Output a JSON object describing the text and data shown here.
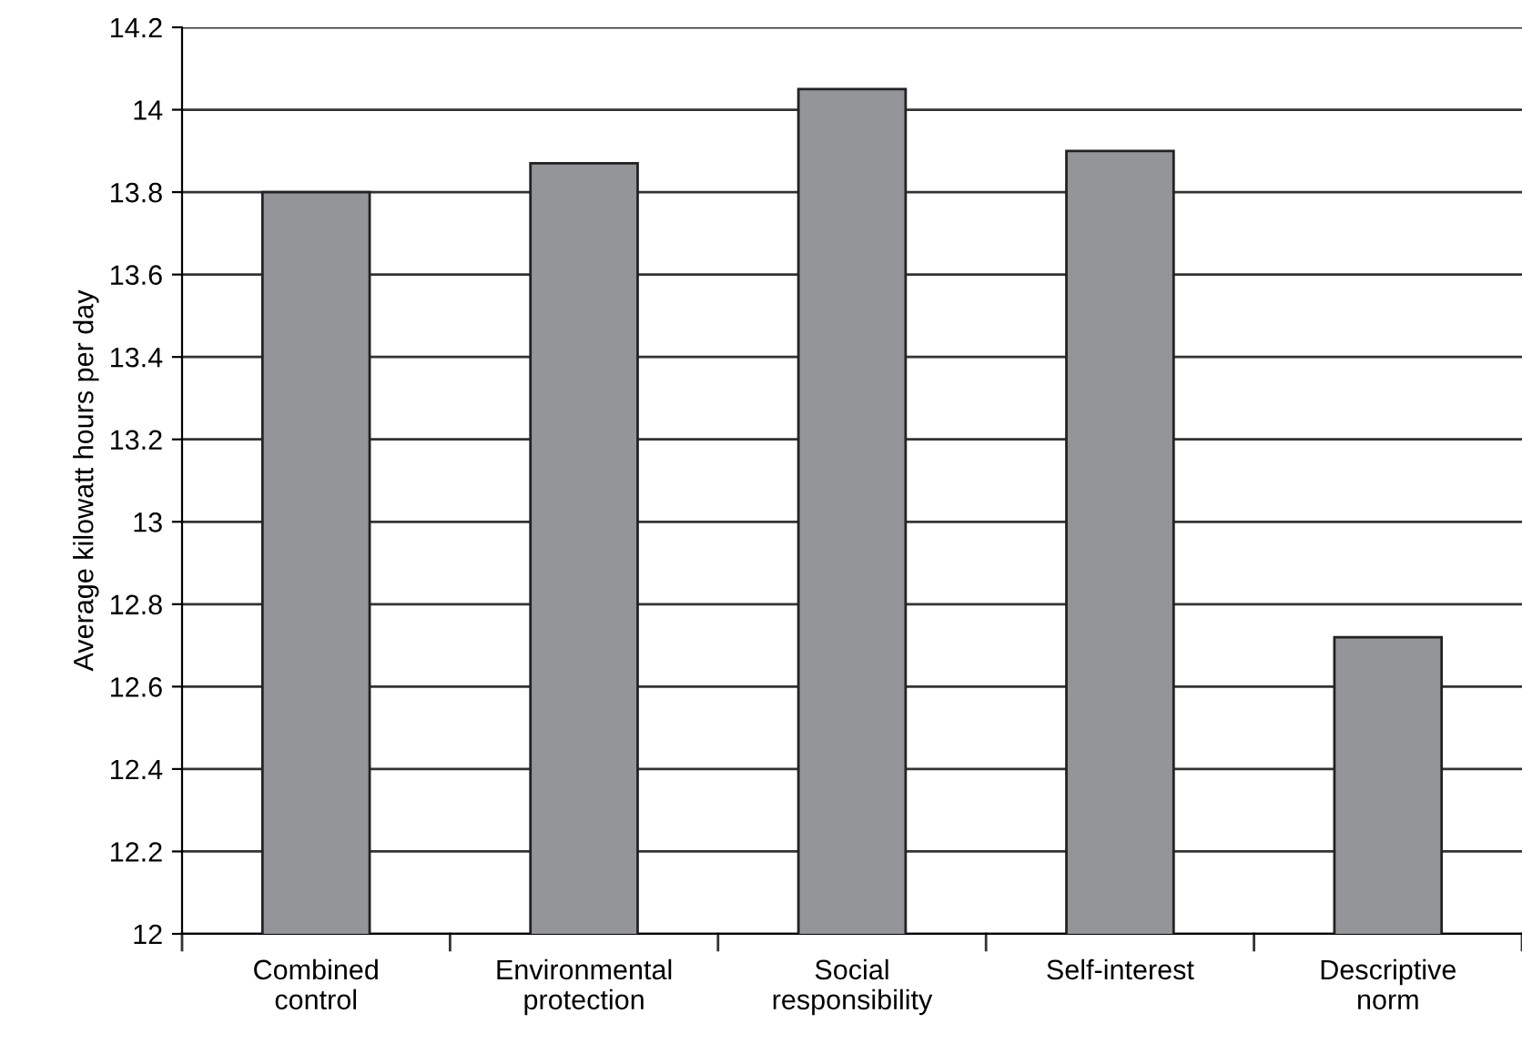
{
  "chart_data": {
    "type": "bar",
    "ylabel": "Average kilowatt hours per day",
    "categories": [
      "Combined\ncontrol",
      "Environmental\nprotection",
      "Social\nresponsibility",
      "Self-interest",
      "Descriptive\nnorm"
    ],
    "values": [
      13.8,
      13.87,
      14.05,
      13.9,
      12.72
    ],
    "color": "#939598",
    "ylim": [
      12,
      14.2
    ],
    "yticks": [
      12,
      12.2,
      12.4,
      12.6,
      12.8,
      13,
      13.2,
      13.4,
      13.6,
      13.8,
      14,
      14.2
    ],
    "grid": "y"
  }
}
